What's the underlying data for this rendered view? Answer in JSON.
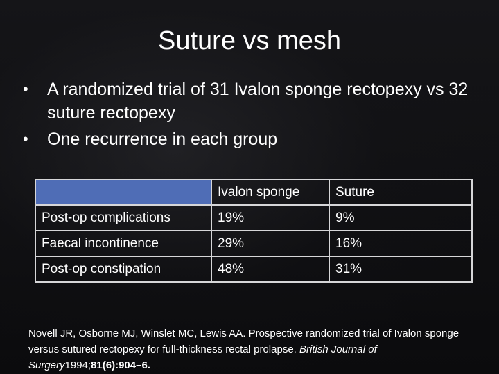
{
  "slide": {
    "title": "Suture vs mesh",
    "bullets": [
      "A randomized trial of 31 Ivalon sponge rectopexy vs 32 suture rectopexy",
      "One recurrence in each group"
    ],
    "bullet_symbol": "•"
  },
  "table": {
    "headers": [
      "",
      "Ivalon sponge",
      "Suture"
    ],
    "rows": [
      [
        "Post-op complications",
        "19%",
        "9%"
      ],
      [
        "Faecal incontinence",
        "29%",
        "16%"
      ],
      [
        "Post-op constipation",
        "48%",
        "31%"
      ]
    ],
    "header_color": "#4f6db6"
  },
  "reference": {
    "authors_title": "Novell JR, Osborne MJ, Winslet MC, Lewis AA. Prospective randomized trial of Ivalon sponge versus sutured rectopexy for full-thickness rectal prolapse.",
    "journal": "British Journal of Surgery",
    "year": "1994;",
    "volume_pages": "81(6):904–6."
  }
}
